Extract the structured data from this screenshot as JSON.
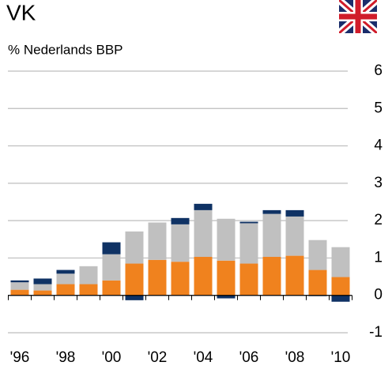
{
  "chart_data": {
    "type": "stacked_bar",
    "title": "VK",
    "subtitle": "% Nederlands BBP",
    "categories": [
      "'96",
      null,
      "'98",
      null,
      "'00",
      null,
      "'02",
      null,
      "'04",
      null,
      "'06",
      null,
      "'08",
      null,
      "'10"
    ],
    "series": [
      {
        "color": "#f0821e",
        "values": [
          0.15,
          0.13,
          0.3,
          0.3,
          0.4,
          0.85,
          0.95,
          0.9,
          1.03,
          0.93,
          0.85,
          1.03,
          1.06,
          0.68,
          0.49
        ]
      },
      {
        "color": "#c0c0c0",
        "values": [
          0.2,
          0.17,
          0.28,
          0.48,
          0.7,
          0.86,
          1.0,
          1.0,
          1.25,
          1.12,
          1.08,
          1.15,
          1.05,
          0.8,
          0.8
        ]
      },
      {
        "color": "#0f3264",
        "values": [
          0.05,
          0.15,
          0.1,
          0,
          0.32,
          -0.13,
          0,
          0.17,
          0.17,
          -0.08,
          0.04,
          0.1,
          0.17,
          -0.02,
          -0.17
        ]
      }
    ],
    "ylim": [
      -1,
      6
    ],
    "yticks": [
      6,
      5,
      4,
      3,
      2,
      1,
      0,
      -1
    ],
    "grid": true
  }
}
